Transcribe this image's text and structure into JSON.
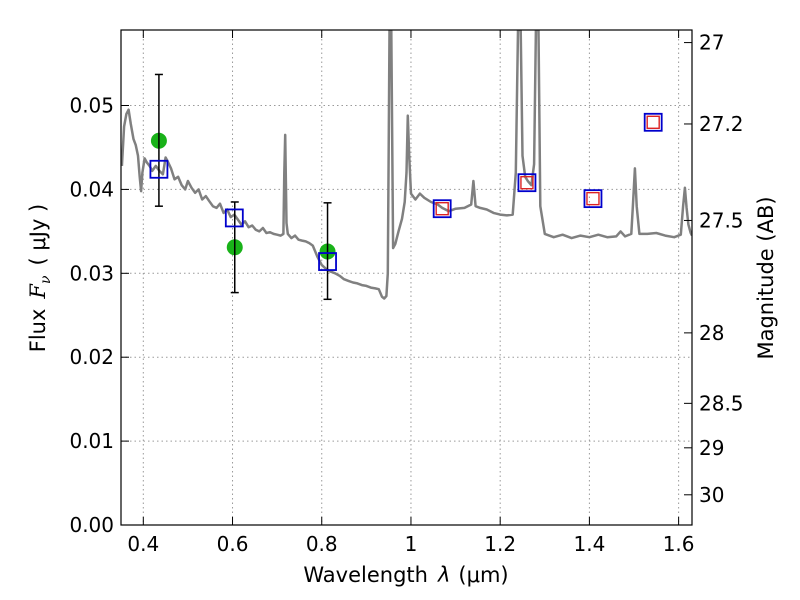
{
  "chart_data": {
    "type": "scatter",
    "xlabel": "Wavelength",
    "xlabel_symbol": "λ",
    "xlabel_unit": "(μm)",
    "ylabel": "Flux",
    "ylabel_symbol": "F",
    "ylabel_subscript": "ν",
    "ylabel_unit": "( μJy )",
    "y2label": "Magnitude (AB)",
    "xlim": [
      0.35,
      1.63
    ],
    "ylim": [
      0.0,
      0.059
    ],
    "grid": true,
    "x_ticks": [
      0.4,
      0.6,
      0.8,
      1.0,
      1.2,
      1.4,
      1.6
    ],
    "x_tick_labels": [
      "0.4",
      "0.6",
      "0.8",
      "1",
      "1.2",
      "1.4",
      "1.6"
    ],
    "y_ticks": [
      0.0,
      0.01,
      0.02,
      0.03,
      0.04,
      0.05
    ],
    "y_tick_labels": [
      "0.00",
      "0.01",
      "0.02",
      "0.03",
      "0.04",
      "0.05"
    ],
    "y2_ticks": [
      {
        "label": "27",
        "flux": 0.0575
      },
      {
        "label": "27.2",
        "flux": 0.0478
      },
      {
        "label": "27.5",
        "flux": 0.0363
      },
      {
        "label": "28",
        "flux": 0.0229
      },
      {
        "label": "28.5",
        "flux": 0.0145
      },
      {
        "label": "29",
        "flux": 0.0092
      },
      {
        "label": "30",
        "flux": 0.0036
      }
    ],
    "series": [
      {
        "kind": "line",
        "color": "#808080",
        "points": [
          [
            0.352,
            0.0428
          ],
          [
            0.357,
            0.0475
          ],
          [
            0.362,
            0.049
          ],
          [
            0.367,
            0.0495
          ],
          [
            0.372,
            0.0478
          ],
          [
            0.378,
            0.046
          ],
          [
            0.383,
            0.0453
          ],
          [
            0.388,
            0.044
          ],
          [
            0.392,
            0.0415
          ],
          [
            0.395,
            0.0398
          ],
          [
            0.398,
            0.042
          ],
          [
            0.403,
            0.0437
          ],
          [
            0.408,
            0.0432
          ],
          [
            0.414,
            0.0428
          ],
          [
            0.42,
            0.0422
          ],
          [
            0.428,
            0.0428
          ],
          [
            0.436,
            0.0422
          ],
          [
            0.444,
            0.0418
          ],
          [
            0.45,
            0.0438
          ],
          [
            0.456,
            0.0432
          ],
          [
            0.462,
            0.0425
          ],
          [
            0.47,
            0.0412
          ],
          [
            0.478,
            0.0415
          ],
          [
            0.486,
            0.0405
          ],
          [
            0.494,
            0.04
          ],
          [
            0.5,
            0.041
          ],
          [
            0.508,
            0.0402
          ],
          [
            0.516,
            0.0396
          ],
          [
            0.524,
            0.04
          ],
          [
            0.532,
            0.0388
          ],
          [
            0.54,
            0.0392
          ],
          [
            0.548,
            0.0386
          ],
          [
            0.556,
            0.038
          ],
          [
            0.564,
            0.0378
          ],
          [
            0.572,
            0.0383
          ],
          [
            0.58,
            0.0372
          ],
          [
            0.588,
            0.0376
          ],
          [
            0.596,
            0.0367
          ],
          [
            0.604,
            0.037
          ],
          [
            0.612,
            0.0364
          ],
          [
            0.62,
            0.0358
          ],
          [
            0.628,
            0.0362
          ],
          [
            0.636,
            0.0355
          ],
          [
            0.644,
            0.0357
          ],
          [
            0.652,
            0.0352
          ],
          [
            0.66,
            0.035
          ],
          [
            0.668,
            0.0354
          ],
          [
            0.676,
            0.0348
          ],
          [
            0.684,
            0.0349
          ],
          [
            0.692,
            0.0347
          ],
          [
            0.7,
            0.0346
          ],
          [
            0.708,
            0.0345
          ],
          [
            0.714,
            0.0347
          ],
          [
            0.716,
            0.042
          ],
          [
            0.718,
            0.0465
          ],
          [
            0.721,
            0.036
          ],
          [
            0.724,
            0.0347
          ],
          [
            0.732,
            0.0342
          ],
          [
            0.74,
            0.0345
          ],
          [
            0.748,
            0.034
          ],
          [
            0.756,
            0.0339
          ],
          [
            0.764,
            0.0338
          ],
          [
            0.772,
            0.0336
          ],
          [
            0.78,
            0.0333
          ],
          [
            0.79,
            0.032
          ],
          [
            0.8,
            0.031
          ],
          [
            0.81,
            0.0305
          ],
          [
            0.82,
            0.0302
          ],
          [
            0.83,
            0.03
          ],
          [
            0.84,
            0.0297
          ],
          [
            0.85,
            0.0293
          ],
          [
            0.86,
            0.0291
          ],
          [
            0.87,
            0.0289
          ],
          [
            0.88,
            0.0288
          ],
          [
            0.89,
            0.0286
          ],
          [
            0.9,
            0.0285
          ],
          [
            0.91,
            0.0283
          ],
          [
            0.92,
            0.0282
          ],
          [
            0.928,
            0.0281
          ],
          [
            0.935,
            0.0272
          ],
          [
            0.94,
            0.027
          ],
          [
            0.945,
            0.0273
          ],
          [
            0.948,
            0.03
          ],
          [
            0.95,
            0.045
          ],
          [
            0.952,
            0.059
          ],
          [
            0.954,
            0.059
          ],
          [
            0.956,
            0.059
          ],
          [
            0.958,
            0.046
          ],
          [
            0.96,
            0.033
          ],
          [
            0.965,
            0.0335
          ],
          [
            0.972,
            0.035
          ],
          [
            0.98,
            0.0365
          ],
          [
            0.986,
            0.0385
          ],
          [
            0.99,
            0.042
          ],
          [
            0.993,
            0.0488
          ],
          [
            0.996,
            0.044
          ],
          [
            1.0,
            0.0395
          ],
          [
            1.01,
            0.0388
          ],
          [
            1.02,
            0.0395
          ],
          [
            1.03,
            0.039
          ],
          [
            1.045,
            0.0385
          ],
          [
            1.06,
            0.0382
          ],
          [
            1.07,
            0.0378
          ],
          [
            1.085,
            0.0374
          ],
          [
            1.1,
            0.0377
          ],
          [
            1.12,
            0.0378
          ],
          [
            1.135,
            0.0382
          ],
          [
            1.14,
            0.041
          ],
          [
            1.145,
            0.038
          ],
          [
            1.155,
            0.0378
          ],
          [
            1.17,
            0.0376
          ],
          [
            1.185,
            0.0372
          ],
          [
            1.2,
            0.037
          ],
          [
            1.215,
            0.0369
          ],
          [
            1.228,
            0.037
          ],
          [
            1.235,
            0.042
          ],
          [
            1.24,
            0.059
          ],
          [
            1.246,
            0.059
          ],
          [
            1.25,
            0.044
          ],
          [
            1.256,
            0.0415
          ],
          [
            1.262,
            0.041
          ],
          [
            1.27,
            0.0405
          ],
          [
            1.276,
            0.043
          ],
          [
            1.28,
            0.059
          ],
          [
            1.286,
            0.059
          ],
          [
            1.29,
            0.038
          ],
          [
            1.3,
            0.0347
          ],
          [
            1.32,
            0.0343
          ],
          [
            1.34,
            0.0346
          ],
          [
            1.36,
            0.0342
          ],
          [
            1.38,
            0.0345
          ],
          [
            1.4,
            0.0343
          ],
          [
            1.42,
            0.0346
          ],
          [
            1.44,
            0.0343
          ],
          [
            1.46,
            0.0344
          ],
          [
            1.47,
            0.035
          ],
          [
            1.48,
            0.0344
          ],
          [
            1.494,
            0.0347
          ],
          [
            1.498,
            0.0385
          ],
          [
            1.502,
            0.0425
          ],
          [
            1.506,
            0.038
          ],
          [
            1.512,
            0.0347
          ],
          [
            1.53,
            0.0347
          ],
          [
            1.55,
            0.0348
          ],
          [
            1.57,
            0.0345
          ],
          [
            1.59,
            0.0343
          ],
          [
            1.605,
            0.0346
          ],
          [
            1.61,
            0.038
          ],
          [
            1.614,
            0.0402
          ],
          [
            1.618,
            0.0378
          ],
          [
            1.622,
            0.0358
          ],
          [
            1.627,
            0.0348
          ],
          [
            1.63,
            0.0345
          ]
        ]
      },
      {
        "kind": "points-filled",
        "color": "#19b219",
        "points": [
          {
            "x": 0.435,
            "y": 0.0458
          },
          {
            "x": 0.605,
            "y": 0.0331
          },
          {
            "x": 0.813,
            "y": 0.0326
          }
        ]
      },
      {
        "kind": "errorbars",
        "color": "#000000",
        "points": [
          {
            "x": 0.435,
            "y": 0.0458,
            "lo": 0.038,
            "hi": 0.0537
          },
          {
            "x": 0.605,
            "y": 0.0331,
            "lo": 0.0277,
            "hi": 0.0385
          },
          {
            "x": 0.813,
            "y": 0.0326,
            "lo": 0.0269,
            "hi": 0.0384
          }
        ]
      },
      {
        "kind": "squares-blue",
        "color": "#0000cc",
        "points": [
          {
            "x": 0.435,
            "y": 0.0424
          },
          {
            "x": 0.604,
            "y": 0.0366
          },
          {
            "x": 0.813,
            "y": 0.0314
          },
          {
            "x": 1.07,
            "y": 0.0377
          },
          {
            "x": 1.26,
            "y": 0.0408
          },
          {
            "x": 1.408,
            "y": 0.0389
          },
          {
            "x": 1.543,
            "y": 0.048
          }
        ]
      },
      {
        "kind": "squares-red",
        "color": "#dd2222",
        "points": [
          {
            "x": 1.07,
            "y": 0.0377
          },
          {
            "x": 1.26,
            "y": 0.0408
          },
          {
            "x": 1.408,
            "y": 0.0389
          },
          {
            "x": 1.543,
            "y": 0.048
          }
        ]
      }
    ]
  }
}
